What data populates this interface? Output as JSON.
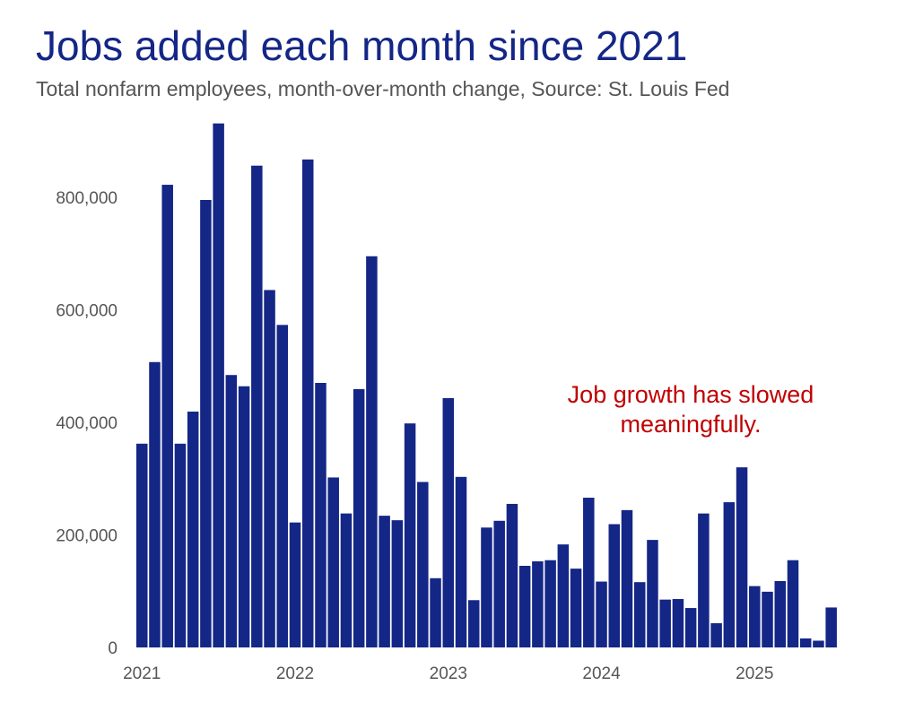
{
  "chart_data": {
    "type": "bar",
    "title": "Jobs added each month since 2021",
    "subtitle": "Total nonfarm employees, month-over-month change, Source: St. Louis Fed",
    "xlabel": "",
    "ylabel": "",
    "ylim": [
      0,
      940000
    ],
    "grid": false,
    "bar_color": "#142686",
    "annotation": {
      "lines": [
        "Job growth has slowed",
        "meaningfully."
      ],
      "color": "#c00000"
    },
    "y_ticks": [
      {
        "value": 0,
        "label": "0"
      },
      {
        "value": 200000,
        "label": "200,000"
      },
      {
        "value": 400000,
        "label": "400,000"
      },
      {
        "value": 600000,
        "label": "600,000"
      },
      {
        "value": 800000,
        "label": "800,000"
      }
    ],
    "x_ticks": [
      {
        "index": 0,
        "label": "2021"
      },
      {
        "index": 12,
        "label": "2022"
      },
      {
        "index": 24,
        "label": "2023"
      },
      {
        "index": 36,
        "label": "2024"
      },
      {
        "index": 48,
        "label": "2025"
      }
    ],
    "categories": [
      "2021-01",
      "2021-02",
      "2021-03",
      "2021-04",
      "2021-05",
      "2021-06",
      "2021-07",
      "2021-08",
      "2021-09",
      "2021-10",
      "2021-11",
      "2021-12",
      "2022-01",
      "2022-02",
      "2022-03",
      "2022-04",
      "2022-05",
      "2022-06",
      "2022-07",
      "2022-08",
      "2022-09",
      "2022-10",
      "2022-11",
      "2022-12",
      "2023-01",
      "2023-02",
      "2023-03",
      "2023-04",
      "2023-05",
      "2023-06",
      "2023-07",
      "2023-08",
      "2023-09",
      "2023-10",
      "2023-11",
      "2023-12",
      "2024-01",
      "2024-02",
      "2024-03",
      "2024-04",
      "2024-05",
      "2024-06",
      "2024-07",
      "2024-08",
      "2024-09",
      "2024-10",
      "2024-11",
      "2024-12",
      "2025-01",
      "2025-02",
      "2025-03",
      "2025-04",
      "2025-05",
      "2025-06",
      "2025-07"
    ],
    "values": [
      362000,
      507000,
      822000,
      362000,
      419000,
      795000,
      931000,
      484000,
      464000,
      856000,
      635000,
      573000,
      222000,
      867000,
      470000,
      302000,
      238000,
      459000,
      695000,
      234000,
      226000,
      398000,
      294000,
      123000,
      443000,
      303000,
      84000,
      213000,
      225000,
      255000,
      145000,
      153000,
      155000,
      183000,
      140000,
      266000,
      117000,
      219000,
      244000,
      116000,
      191000,
      85000,
      86000,
      70000,
      238000,
      43000,
      258000,
      320000,
      109000,
      99000,
      118000,
      155000,
      16000,
      12000,
      71000
    ]
  }
}
